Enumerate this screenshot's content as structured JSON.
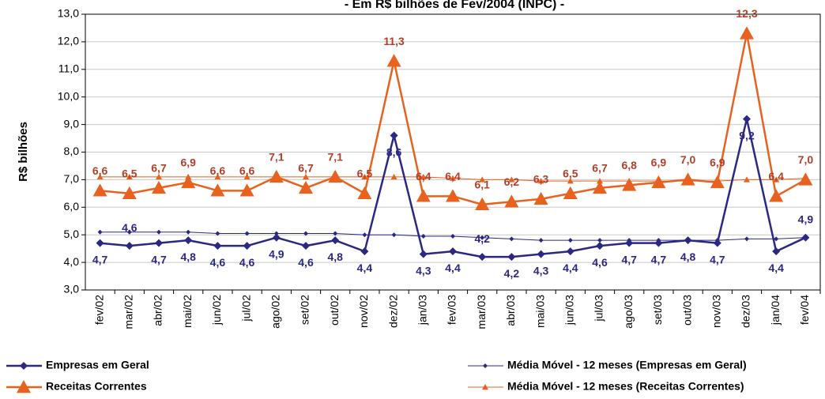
{
  "chart_data": {
    "type": "line",
    "title": "- Em R$ bilhões de Fev/2004 (INPC) -",
    "y_label": "R$ bilhões",
    "categories": [
      "fev/02",
      "mar/02",
      "abr/02",
      "mai/02",
      "jun/02",
      "jul/02",
      "ago/02",
      "set/02",
      "out/02",
      "nov/02",
      "dez/02",
      "jan/03",
      "fev/03",
      "mar/03",
      "abr/03",
      "mai/03",
      "jun/03",
      "jul/03",
      "ago/03",
      "set/03",
      "out/03",
      "nov/03",
      "dez/03",
      "jan/04",
      "fev/04"
    ],
    "ylim": [
      3,
      13
    ],
    "yticks": [
      {
        "value": 3,
        "label": "3,0"
      },
      {
        "value": 4,
        "label": "4,0"
      },
      {
        "value": 5,
        "label": "5,0"
      },
      {
        "value": 6,
        "label": "6,0"
      },
      {
        "value": 7,
        "label": "7,0"
      },
      {
        "value": 8,
        "label": "8,0"
      },
      {
        "value": 9,
        "label": "9,0"
      },
      {
        "value": 10,
        "label": "10,0"
      },
      {
        "value": 11,
        "label": "11,0"
      },
      {
        "value": 12,
        "label": "12,0"
      },
      {
        "value": 13,
        "label": "13,0"
      }
    ],
    "series": [
      {
        "name": "Empresas em Geral",
        "color": "#2b2883",
        "values": [
          4.7,
          4.6,
          4.7,
          4.8,
          4.6,
          4.6,
          4.9,
          4.6,
          4.8,
          4.4,
          8.6,
          4.3,
          4.4,
          4.2,
          4.2,
          4.3,
          4.4,
          4.6,
          4.7,
          4.7,
          4.8,
          4.7,
          9.2,
          4.4,
          4.9
        ],
        "value_labels": [
          "4,7",
          "4,6",
          "4,7",
          "4,8",
          "4,6",
          "4,6",
          "4,9",
          "4,6",
          "4,8",
          "4,4",
          "8,6",
          "4,3",
          "4,4",
          "4,2",
          "4,2",
          "4,3",
          "4,4",
          "4,6",
          "4,7",
          "4,7",
          "4,8",
          "4,7",
          "9,2",
          "4,4",
          "4,9"
        ]
      },
      {
        "name": "Receitas Correntes",
        "color": "#e8611f",
        "values": [
          6.6,
          6.5,
          6.7,
          6.9,
          6.6,
          6.6,
          7.1,
          6.7,
          7.1,
          6.5,
          11.3,
          6.4,
          6.4,
          6.1,
          6.2,
          6.3,
          6.5,
          6.7,
          6.8,
          6.9,
          7.0,
          6.9,
          12.3,
          6.4,
          7.0
        ],
        "value_labels": [
          "6,6",
          "6,5",
          "6,7",
          "6,9",
          "6,6",
          "6,6",
          "7,1",
          "6,7",
          "7,1",
          "6,5",
          "11,3",
          "6,4",
          "6,4",
          "6,1",
          "6,2",
          "6,3",
          "6,5",
          "6,7",
          "6,8",
          "6,9",
          "7,0",
          "6,9",
          "12,3",
          "6,4",
          "7,0"
        ]
      },
      {
        "name": "Média Móvel - 12 meses (Empresas em Geral)",
        "color": "#2b2883",
        "values": [
          5.1,
          5.1,
          5.1,
          5.1,
          5.05,
          5.05,
          5.05,
          5.05,
          5.05,
          5.0,
          5.0,
          4.95,
          4.95,
          4.9,
          4.85,
          4.8,
          4.8,
          4.8,
          4.8,
          4.8,
          4.8,
          4.8,
          4.85,
          4.85,
          4.9
        ]
      },
      {
        "name": "Média Móvel - 12 meses (Receitas Correntes)",
        "color": "#e8611f",
        "values": [
          7.1,
          7.1,
          7.1,
          7.1,
          7.1,
          7.1,
          7.1,
          7.1,
          7.1,
          7.1,
          7.1,
          7.1,
          7.05,
          7.0,
          7.0,
          6.95,
          6.95,
          6.95,
          6.95,
          6.95,
          6.95,
          6.95,
          7.0,
          7.0,
          7.05
        ]
      }
    ]
  }
}
